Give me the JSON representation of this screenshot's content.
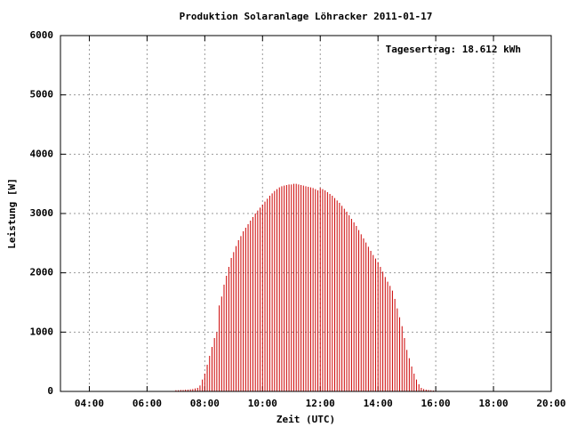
{
  "chart_data": {
    "type": "impulses",
    "title": "Produktion Solaranlage Löhracker 2011-01-17",
    "annotation": "Tagesertrag: 18.612 kWh",
    "x_label": "Zeit (UTC)",
    "y_label": "Leistung [W]",
    "color": "#cc0000",
    "grid": true,
    "xlim": [
      180,
      1200
    ],
    "ylim": [
      0,
      6000
    ],
    "xticks": [
      {
        "value": 240,
        "label": "04:00"
      },
      {
        "value": 360,
        "label": "06:00"
      },
      {
        "value": 480,
        "label": "08:00"
      },
      {
        "value": 600,
        "label": "10:00"
      },
      {
        "value": 720,
        "label": "12:00"
      },
      {
        "value": 840,
        "label": "14:00"
      },
      {
        "value": 960,
        "label": "16:00"
      },
      {
        "value": 1080,
        "label": "18:00"
      },
      {
        "value": 1200,
        "label": "20:00"
      }
    ],
    "yticks": [
      0,
      1000,
      2000,
      3000,
      4000,
      5000,
      6000
    ],
    "x": [
      420,
      425,
      430,
      435,
      440,
      445,
      450,
      455,
      460,
      465,
      470,
      475,
      480,
      485,
      490,
      495,
      500,
      505,
      510,
      515,
      520,
      525,
      530,
      535,
      540,
      545,
      550,
      555,
      560,
      565,
      570,
      575,
      580,
      585,
      590,
      595,
      600,
      605,
      610,
      615,
      620,
      625,
      630,
      635,
      640,
      645,
      650,
      655,
      660,
      665,
      670,
      675,
      680,
      685,
      690,
      695,
      700,
      705,
      710,
      715,
      720,
      725,
      730,
      735,
      740,
      745,
      750,
      755,
      760,
      765,
      770,
      775,
      780,
      785,
      790,
      795,
      800,
      805,
      810,
      815,
      820,
      825,
      830,
      835,
      840,
      845,
      850,
      855,
      860,
      865,
      870,
      875,
      880,
      885,
      890,
      895,
      900,
      905,
      910,
      915,
      920,
      925,
      930,
      935,
      940,
      945,
      950,
      955,
      960,
      965
    ],
    "values": [
      20,
      20,
      25,
      25,
      30,
      30,
      35,
      40,
      50,
      60,
      100,
      200,
      300,
      450,
      600,
      750,
      900,
      1000,
      1450,
      1600,
      1800,
      1950,
      2100,
      2250,
      2350,
      2450,
      2550,
      2620,
      2700,
      2760,
      2820,
      2880,
      2940,
      3000,
      3050,
      3100,
      3150,
      3200,
      3250,
      3300,
      3340,
      3380,
      3410,
      3440,
      3460,
      3470,
      3480,
      3490,
      3490,
      3500,
      3500,
      3490,
      3480,
      3470,
      3460,
      3450,
      3440,
      3430,
      3410,
      3390,
      3430,
      3410,
      3390,
      3360,
      3330,
      3300,
      3260,
      3220,
      3180,
      3130,
      3080,
      3030,
      2970,
      2910,
      2850,
      2790,
      2720,
      2650,
      2580,
      2510,
      2440,
      2370,
      2300,
      2240,
      2180,
      2100,
      2020,
      1930,
      1850,
      1780,
      1700,
      1560,
      1400,
      1250,
      1100,
      900,
      700,
      560,
      420,
      300,
      200,
      120,
      60,
      40,
      30,
      25,
      20,
      15,
      10,
      5
    ]
  }
}
